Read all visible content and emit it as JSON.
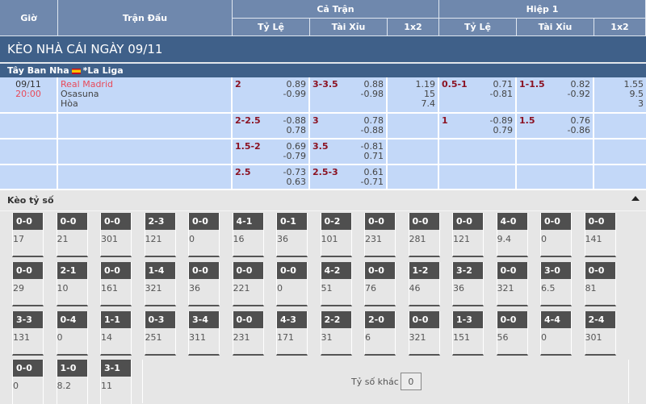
{
  "header": {
    "gio": "Giờ",
    "tran_dau": "Trận Đấu",
    "ca_tran": "Cả Trận",
    "hiep1": "Hiệp 1",
    "ty_le": "Tỷ Lệ",
    "tai_xiu": "Tài Xỉu",
    "x12": "1x2"
  },
  "title": "KÈO NHÀ CÁI NGÀY 09/11",
  "league": {
    "country": "Tây Ban Nha",
    "name": "*La Liga",
    "flag": "spain-flag"
  },
  "match": {
    "date": "09/11",
    "time": "20:00",
    "home": "Real Madrid",
    "away": "Osasuna",
    "draw": "Hòa"
  },
  "rows": [
    {
      "ft_hdp": "2",
      "ft_hdp_o": [
        "0.89",
        "-0.99"
      ],
      "ft_ou": "3-3.5",
      "ft_ou_o": [
        "0.88",
        "-0.98"
      ],
      "ft_1x2": [
        "1.19",
        "15",
        "7.4"
      ],
      "h1_hdp": "0.5-1",
      "h1_hdp_o": [
        "0.71",
        "-0.81"
      ],
      "h1_ou": "1-1.5",
      "h1_ou_o": [
        "0.82",
        "-0.92"
      ],
      "h1_1x2": [
        "1.55",
        "9.5",
        "3"
      ]
    },
    {
      "ft_hdp": "2-2.5",
      "ft_hdp_o": [
        "-0.88",
        "0.78"
      ],
      "ft_ou": "3",
      "ft_ou_o": [
        "0.78",
        "-0.88"
      ],
      "ft_1x2": [],
      "h1_hdp": "1",
      "h1_hdp_o": [
        "-0.89",
        "0.79"
      ],
      "h1_ou": "1.5",
      "h1_ou_o": [
        "0.76",
        "-0.86"
      ],
      "h1_1x2": []
    },
    {
      "ft_hdp": "1.5-2",
      "ft_hdp_o": [
        "0.69",
        "-0.79"
      ],
      "ft_ou": "3.5",
      "ft_ou_o": [
        "-0.81",
        "0.71"
      ],
      "ft_1x2": [],
      "h1_hdp": "",
      "h1_hdp_o": [],
      "h1_ou": "",
      "h1_ou_o": [],
      "h1_1x2": []
    },
    {
      "ft_hdp": "2.5",
      "ft_hdp_o": [
        "-0.73",
        "0.63"
      ],
      "ft_ou": "2.5-3",
      "ft_ou_o": [
        "0.61",
        "-0.71"
      ],
      "ft_1x2": [],
      "h1_hdp": "",
      "h1_hdp_o": [],
      "h1_ou": "",
      "h1_ou_o": [],
      "h1_1x2": []
    }
  ],
  "correct_score": {
    "label": "Kèo tỷ số",
    "collapse_icon": "caret-up-icon",
    "other_label": "Tỷ số khác",
    "other_value": "0",
    "grid": [
      [
        [
          "0-0",
          "17"
        ],
        [
          "0-0",
          "21"
        ],
        [
          "0-0",
          "301"
        ],
        [
          "2-3",
          "121"
        ],
        [
          "0-0",
          "0"
        ],
        [
          "4-1",
          "16"
        ],
        [
          "0-1",
          "36"
        ],
        [
          "0-2",
          "101"
        ],
        [
          "0-0",
          "231"
        ],
        [
          "0-0",
          "281"
        ],
        [
          "0-0",
          "121"
        ],
        [
          "4-0",
          "9.4"
        ],
        [
          "0-0",
          "0"
        ],
        [
          "0-0",
          "141"
        ]
      ],
      [
        [
          "0-0",
          "29"
        ],
        [
          "2-1",
          "10"
        ],
        [
          "0-0",
          "161"
        ],
        [
          "1-4",
          "321"
        ],
        [
          "0-0",
          "36"
        ],
        [
          "0-0",
          "221"
        ],
        [
          "0-0",
          "0"
        ],
        [
          "4-2",
          "51"
        ],
        [
          "0-0",
          "76"
        ],
        [
          "1-2",
          "46"
        ],
        [
          "3-2",
          "36"
        ],
        [
          "0-0",
          "321"
        ],
        [
          "3-0",
          "6.5"
        ],
        [
          "0-0",
          "81"
        ]
      ],
      [
        [
          "3-3",
          "131"
        ],
        [
          "0-4",
          "0"
        ],
        [
          "1-1",
          "14"
        ],
        [
          "0-3",
          "251"
        ],
        [
          "3-4",
          "311"
        ],
        [
          "0-0",
          "231"
        ],
        [
          "4-3",
          "171"
        ],
        [
          "2-2",
          "31"
        ],
        [
          "2-0",
          "6"
        ],
        [
          "0-0",
          "321"
        ],
        [
          "1-3",
          "151"
        ],
        [
          "0-0",
          "56"
        ],
        [
          "4-4",
          "0"
        ],
        [
          "2-4",
          "301"
        ]
      ],
      [
        [
          "0-0",
          "0"
        ],
        [
          "1-0",
          "8.2"
        ],
        [
          "3-1",
          "11"
        ]
      ]
    ]
  }
}
